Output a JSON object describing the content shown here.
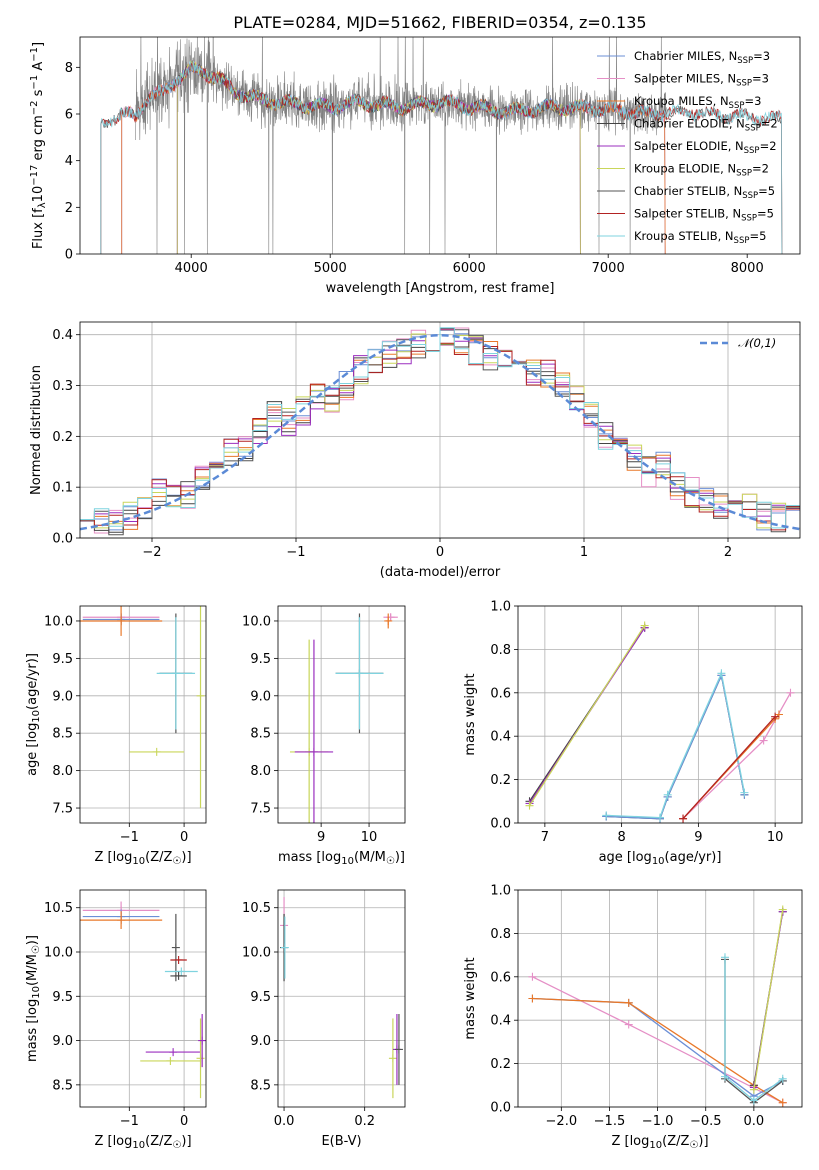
{
  "figure": {
    "title": "PLATE=0284, MJD=51662, FIBERID=0354, z=0.135"
  },
  "palette": {
    "Chabrier MILES": "#6b8fd6",
    "Salpeter MILES": "#e58fc6",
    "Kroupa MILES": "#e8782a",
    "Chabrier ELODIE": "#444444",
    "Salpeter ELODIE": "#9b2fbf",
    "Kroupa ELODIE": "#c9d65a",
    "Chabrier STELIB": "#555555",
    "Salpeter STELIB": "#b22222",
    "Kroupa STELIB": "#7fd3df",
    "normal": "#5b8ad6",
    "spectrum": "#808080"
  },
  "chart_data": [
    {
      "id": "spectrum",
      "type": "line",
      "title": "PLATE=0284, MJD=51662, FIBERID=0354, z=0.135",
      "xlabel": "wavelength [Angstrom, rest frame]",
      "ylabel": "Flux [f_λ 10^-17 erg cm^-2 s^-1 A^-1]",
      "xlim": [
        3200,
        8380
      ],
      "ylim": [
        0,
        9.3
      ],
      "xticks": [
        4000,
        5000,
        6000,
        7000,
        8000
      ],
      "yticks": [
        0,
        2,
        4,
        6,
        8
      ],
      "grid": false,
      "legend_position": "right",
      "legend": [
        "Chabrier MILES, N_SSP=3",
        "Salpeter MILES, N_SSP=3",
        "Kroupa MILES, N_SSP=3",
        "Chabrier ELODIE, N_SSP=2",
        "Salpeter ELODIE, N_SSP=2",
        "Kroupa ELODIE, N_SSP=2",
        "Chabrier STELIB, N_SSP=5",
        "Salpeter STELIB, N_SSP=5",
        "Kroupa STELIB, N_SSP=5"
      ],
      "continuum_x": [
        3350,
        3500,
        3600,
        3700,
        3800,
        3900,
        4000,
        4100,
        4200,
        4300,
        4500,
        4800,
        5000,
        5200,
        5500,
        5800,
        6000,
        6300,
        6600,
        7000,
        7300,
        7600,
        7900,
        8250
      ],
      "continuum_y": [
        5.6,
        6.0,
        5.9,
        6.8,
        6.9,
        7.5,
        7.9,
        7.8,
        7.5,
        7.0,
        6.6,
        6.4,
        6.3,
        6.5,
        6.3,
        6.5,
        6.3,
        6.1,
        6.3,
        6.2,
        6.0,
        6.1,
        5.9,
        5.8
      ],
      "data_start": 3600,
      "data_end": 7420,
      "models": [
        {
          "name": "Chabrier MILES",
          "start": 3500,
          "end": 7410
        },
        {
          "name": "Salpeter MILES",
          "start": 3500,
          "end": 7410
        },
        {
          "name": "Kroupa MILES",
          "start": 3500,
          "end": 7410
        },
        {
          "name": "Chabrier ELODIE",
          "start": 3900,
          "end": 6800
        },
        {
          "name": "Salpeter ELODIE",
          "start": 3900,
          "end": 6800
        },
        {
          "name": "Kroupa ELODIE",
          "start": 3900,
          "end": 6800
        },
        {
          "name": "Chabrier STELIB",
          "start": 3350,
          "end": 8250
        },
        {
          "name": "Salpeter STELIB",
          "start": 3350,
          "end": 8250
        },
        {
          "name": "Kroupa STELIB",
          "start": 3350,
          "end": 8250
        }
      ]
    },
    {
      "id": "residuals",
      "type": "line",
      "xlabel": "(data-model)/error",
      "ylabel": "Normed distribution",
      "xlim": [
        -2.5,
        2.5
      ],
      "ylim": [
        0,
        0.425
      ],
      "xticks": [
        -2,
        -1,
        0,
        1,
        2
      ],
      "yticks": [
        0.0,
        0.1,
        0.2,
        0.3,
        0.4
      ],
      "grid": true,
      "legend_position": "top-right",
      "normal_label": "𝒩(0,1)",
      "bin_edges_start": -2.5,
      "bin_width": 0.1,
      "base_histogram": [
        0.042,
        0.038,
        0.032,
        0.045,
        0.05,
        0.09,
        0.075,
        0.085,
        0.125,
        0.13,
        0.17,
        0.18,
        0.21,
        0.24,
        0.23,
        0.25,
        0.28,
        0.27,
        0.3,
        0.33,
        0.35,
        0.36,
        0.37,
        0.38,
        0.385,
        0.39,
        0.385,
        0.37,
        0.36,
        0.35,
        0.34,
        0.33,
        0.32,
        0.3,
        0.27,
        0.24,
        0.2,
        0.18,
        0.16,
        0.13,
        0.14,
        0.1,
        0.09,
        0.08,
        0.065,
        0.05,
        0.06,
        0.045,
        0.04,
        0.04
      ]
    },
    {
      "id": "age_vs_Z",
      "type": "scatter",
      "xlabel": "Z [log10(Z/Z☉)]",
      "ylabel": "age [log10(age/yr)]",
      "xlim": [
        -1.9,
        0.4
      ],
      "ylim": [
        7.3,
        10.2
      ],
      "xticks": [
        -1,
        0
      ],
      "yticks": [
        7.5,
        8.0,
        8.5,
        9.0,
        9.5,
        10.0
      ],
      "grid": true,
      "points": [
        {
          "model": "Salpeter MILES",
          "x": -1.15,
          "y": 10.05,
          "xerr": 0.7,
          "yerr": 0.05
        },
        {
          "model": "Chabrier MILES",
          "x": -1.15,
          "y": 10.02,
          "xerr": 0.7,
          "yerr": 0.08
        },
        {
          "model": "Kroupa MILES",
          "x": -1.15,
          "y": 10.0,
          "xerr": 0.75,
          "yerr": 0.2
        },
        {
          "model": "Chabrier STELIB",
          "x": -0.15,
          "y": 9.3,
          "xerr": 0.3,
          "yerr": 0.8
        },
        {
          "model": "Kroupa STELIB",
          "x": -0.15,
          "y": 9.3,
          "xerr": 0.35,
          "yerr": 0.75
        },
        {
          "model": "Kroupa ELODIE",
          "x": -0.5,
          "y": 8.25,
          "xerr": 0.5,
          "yerr": 0.0
        },
        {
          "model": "Kroupa ELODIE",
          "x": 0.3,
          "y": 9.0,
          "xerr": 0.0,
          "yerr": 1.5
        }
      ]
    },
    {
      "id": "age_vs_mass",
      "type": "scatter",
      "xlabel": "mass [log10(M/M☉)]",
      "ylabel": "",
      "xlim": [
        8.1,
        10.75
      ],
      "ylim": [
        7.3,
        10.2
      ],
      "xticks": [
        9,
        10
      ],
      "yticks": [
        7.5,
        8.0,
        8.5,
        9.0,
        9.5,
        10.0
      ],
      "grid": true,
      "points": [
        {
          "model": "Salpeter MILES",
          "x": 10.45,
          "y": 10.05,
          "xerr": 0.15,
          "yerr": 0.05
        },
        {
          "model": "Kroupa MILES",
          "x": 10.4,
          "y": 10.0,
          "xerr": 0.05,
          "yerr": 0.1
        },
        {
          "model": "Chabrier STELIB",
          "x": 9.8,
          "y": 9.3,
          "xerr": 0.5,
          "yerr": 0.8
        },
        {
          "model": "Kroupa STELIB",
          "x": 9.8,
          "y": 9.3,
          "xerr": 0.5,
          "yerr": 0.75
        },
        {
          "model": "Kroupa ELODIE",
          "x": 8.75,
          "y": 8.25,
          "xerr": 0.4,
          "yerr": 1.5
        },
        {
          "model": "Salpeter ELODIE",
          "x": 8.85,
          "y": 8.25,
          "xerr": 0.4,
          "yerr": 1.5
        }
      ]
    },
    {
      "id": "massweight_vs_age",
      "type": "line",
      "xlabel": "age [log10(age/yr)]",
      "ylabel": "mass weight",
      "xlim": [
        6.65,
        10.35
      ],
      "ylim": [
        0.0,
        1.0
      ],
      "xticks": [
        7,
        8,
        9,
        10
      ],
      "yticks": [
        0.0,
        0.2,
        0.4,
        0.6,
        0.8,
        1.0
      ],
      "grid": true,
      "series": [
        {
          "model": "Chabrier ELODIE",
          "x": [
            6.8,
            8.3
          ],
          "y": [
            0.1,
            0.9
          ]
        },
        {
          "model": "Salpeter ELODIE",
          "x": [
            6.8,
            8.3
          ],
          "y": [
            0.09,
            0.9
          ]
        },
        {
          "model": "Kroupa ELODIE",
          "x": [
            6.8,
            8.3
          ],
          "y": [
            0.08,
            0.91
          ]
        },
        {
          "model": "Chabrier STELIB",
          "x": [
            7.8,
            8.5,
            8.6,
            9.3,
            9.6
          ],
          "y": [
            0.03,
            0.02,
            0.12,
            0.68,
            0.13
          ]
        },
        {
          "model": "Chabrier MILES",
          "x": [
            7.8,
            8.5,
            8.6,
            9.3,
            9.6
          ],
          "y": [
            0.03,
            0.02,
            0.12,
            0.68,
            0.13
          ]
        },
        {
          "model": "Kroupa STELIB",
          "x": [
            7.8,
            8.5,
            8.6,
            9.3,
            9.6
          ],
          "y": [
            0.035,
            0.025,
            0.13,
            0.69,
            0.14
          ]
        },
        {
          "model": "Salpeter MILES",
          "x": [
            8.8,
            9.85,
            10.2
          ],
          "y": [
            0.02,
            0.38,
            0.6
          ]
        },
        {
          "model": "Kroupa MILES",
          "x": [
            8.8,
            10.0,
            10.05
          ],
          "y": [
            0.02,
            0.48,
            0.5
          ]
        },
        {
          "model": "Salpeter STELIB",
          "x": [
            8.8,
            10.0
          ],
          "y": [
            0.02,
            0.49
          ]
        }
      ]
    },
    {
      "id": "mass_vs_Z",
      "type": "scatter",
      "xlabel": "Z [log10(Z/Z☉)]",
      "ylabel": "mass [log10(M/M☉)]",
      "xlim": [
        -1.9,
        0.4
      ],
      "ylim": [
        8.25,
        10.7
      ],
      "xticks": [
        -1,
        0
      ],
      "yticks": [
        8.5,
        9.0,
        9.5,
        10.0,
        10.5
      ],
      "grid": true,
      "points": [
        {
          "model": "Salpeter MILES",
          "x": -1.15,
          "y": 10.47,
          "xerr": 0.7,
          "yerr": 0.1
        },
        {
          "model": "Chabrier MILES",
          "x": -1.15,
          "y": 10.4,
          "xerr": 0.7,
          "yerr": 0.08
        },
        {
          "model": "Kroupa MILES",
          "x": -1.15,
          "y": 10.36,
          "xerr": 0.75,
          "yerr": 0.1
        },
        {
          "model": "Chabrier STELIB",
          "x": -0.15,
          "y": 10.05,
          "xerr": 0.0,
          "yerr": 0.38
        },
        {
          "model": "Salpeter STELIB",
          "x": -0.1,
          "y": 9.91,
          "xerr": 0.15,
          "yerr": 0.0
        },
        {
          "model": "Kroupa STELIB",
          "x": -0.05,
          "y": 9.78,
          "xerr": 0.3,
          "yerr": 0.0
        },
        {
          "model": "Chabrier ELODIE",
          "x": -0.1,
          "y": 9.73,
          "xerr": 0.15,
          "yerr": 0.0
        },
        {
          "model": "Salpeter ELODIE",
          "x": -0.2,
          "y": 8.87,
          "xerr": 0.5,
          "yerr": 0.0
        },
        {
          "model": "Kroupa ELODIE",
          "x": -0.25,
          "y": 8.77,
          "xerr": 0.55,
          "yerr": 0.0
        },
        {
          "model": "Kroupa ELODIE",
          "x": 0.3,
          "y": 8.8,
          "xerr": 0.0,
          "yerr": 0.45
        },
        {
          "model": "Salpeter ELODIE",
          "x": 0.33,
          "y": 9.0,
          "xerr": 0.0,
          "yerr": 0.3
        }
      ]
    },
    {
      "id": "mass_vs_ebv",
      "type": "scatter",
      "xlabel": "E(B-V)",
      "ylabel": "",
      "xlim": [
        -0.015,
        0.3
      ],
      "ylim": [
        8.25,
        10.7
      ],
      "xticks": [
        0.0,
        0.2
      ],
      "yticks": [
        8.5,
        9.0,
        9.5,
        10.0,
        10.5
      ],
      "grid": true,
      "points": [
        {
          "model": "Salpeter MILES",
          "x": 0.0,
          "y": 10.3,
          "xerr": 0.0,
          "yerr": 0.32
        },
        {
          "model": "Chabrier ELODIE",
          "x": 0.0,
          "y": 10.05,
          "xerr": 0.0,
          "yerr": 0.38
        },
        {
          "model": "Kroupa STELIB",
          "x": 0.002,
          "y": 10.05,
          "xerr": 0.0,
          "yerr": 0.35
        },
        {
          "model": "Kroupa ELODIE",
          "x": 0.27,
          "y": 8.8,
          "xerr": 0.0,
          "yerr": 0.45
        },
        {
          "model": "Salpeter ELODIE",
          "x": 0.28,
          "y": 8.9,
          "xerr": 0.0,
          "yerr": 0.4
        },
        {
          "model": "Chabrier STELIB",
          "x": 0.285,
          "y": 8.9,
          "xerr": 0.0,
          "yerr": 0.4
        }
      ]
    },
    {
      "id": "massweight_vs_Z",
      "type": "line",
      "xlabel": "Z [log10(Z/Z☉)]",
      "ylabel": "mass weight",
      "xlim": [
        -2.45,
        0.5
      ],
      "ylim": [
        0.0,
        1.0
      ],
      "xticks": [
        -2.0,
        -1.5,
        -1.0,
        -0.5,
        0.0
      ],
      "yticks": [
        0.0,
        0.2,
        0.4,
        0.6,
        0.8,
        1.0
      ],
      "grid": true,
      "series": [
        {
          "model": "Salpeter MILES",
          "x": [
            -2.3,
            -1.3,
            0.3
          ],
          "y": [
            0.6,
            0.38,
            0.02
          ]
        },
        {
          "model": "Chabrier MILES",
          "x": [
            -2.3,
            -1.3,
            0.0,
            0.3
          ],
          "y": [
            0.5,
            0.48,
            0.05,
            0.12
          ]
        },
        {
          "model": "Kroupa MILES",
          "x": [
            -2.3,
            -1.3,
            0.0,
            0.3
          ],
          "y": [
            0.5,
            0.48,
            0.1,
            0.02
          ]
        },
        {
          "model": "Chabrier STELIB",
          "x": [
            -0.3,
            -0.3,
            0.0,
            0.3
          ],
          "y": [
            0.68,
            0.13,
            0.02,
            0.12
          ]
        },
        {
          "model": "Kroupa STELIB",
          "x": [
            -0.3,
            -0.3,
            0.0,
            0.3
          ],
          "y": [
            0.69,
            0.14,
            0.03,
            0.13
          ]
        },
        {
          "model": "Chabrier ELODIE",
          "x": [
            0.0,
            0.3
          ],
          "y": [
            0.1,
            0.9
          ]
        },
        {
          "model": "Salpeter ELODIE",
          "x": [
            0.0,
            0.3
          ],
          "y": [
            0.09,
            0.9
          ]
        },
        {
          "model": "Kroupa ELODIE",
          "x": [
            0.0,
            0.3
          ],
          "y": [
            0.08,
            0.91
          ]
        }
      ]
    }
  ]
}
